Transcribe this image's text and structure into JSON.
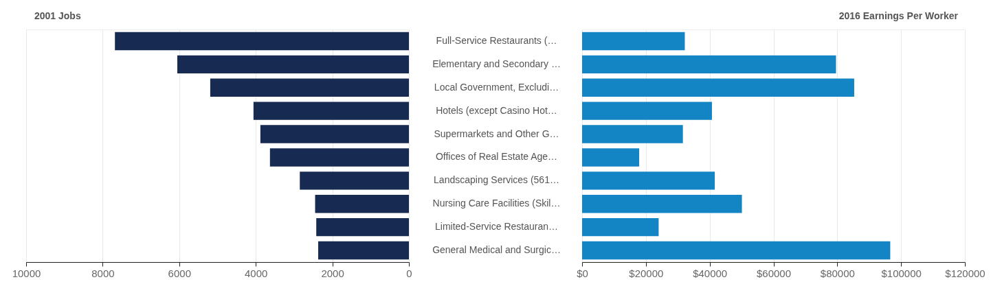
{
  "chart_data": [
    {
      "type": "bar",
      "orientation": "horizontal",
      "title": "2001 Jobs",
      "categories": [
        null,
        null,
        null,
        null,
        null,
        null,
        null,
        null,
        null,
        null
      ],
      "values": [
        7680,
        6050,
        5190,
        4060,
        3880,
        3630,
        2850,
        2450,
        2420,
        2370
      ],
      "color": "#172a51",
      "xlim": [
        10000,
        0
      ],
      "xticks": [
        10000,
        8000,
        6000,
        4000,
        2000,
        0
      ],
      "grid": "x"
    },
    {
      "type": "bar",
      "orientation": "horizontal",
      "title": "2016 Earnings Per Worker",
      "categories": [
        "Full-Service Restaurants (…",
        "Elementary and Secondary …",
        "Local Government, Excludi…",
        "Hotels (except Casino Hot…",
        "Supermarkets and Other G…",
        "Offices of Real Estate Age…",
        "Landscaping Services (561…",
        "Nursing Care Facilities (Skil…",
        "Limited-Service Restauran…",
        "General Medical and Surgic…"
      ],
      "values": [
        32200,
        79600,
        85300,
        40700,
        31600,
        17900,
        41600,
        50100,
        24000,
        96600
      ],
      "color": "#1384c4",
      "xlim": [
        0,
        120000
      ],
      "xticks": [
        {
          "value": 0,
          "label": "$0"
        },
        {
          "value": 20000,
          "label": "$20000"
        },
        {
          "value": 40000,
          "label": "$40000"
        },
        {
          "value": 60000,
          "label": "$60000"
        },
        {
          "value": 80000,
          "label": "$80000"
        },
        {
          "value": 100000,
          "label": "$100000"
        },
        {
          "value": 120000,
          "label": "$120000"
        }
      ],
      "grid": "x"
    }
  ]
}
